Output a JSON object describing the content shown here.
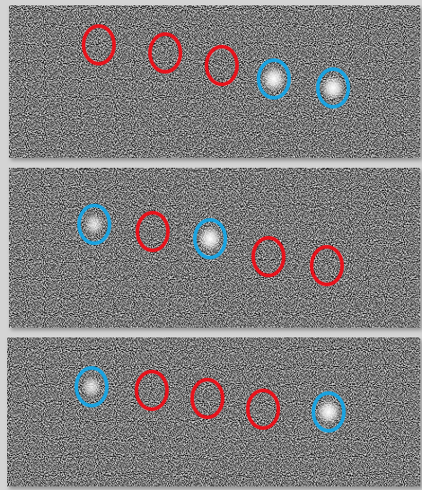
{
  "panels": [
    {
      "markers": [
        "#e8131c",
        "#e8131c",
        "#e8131c",
        "#1aa3e0",
        "#1aa3e0"
      ]
    },
    {
      "markers": [
        "#1aa3e0",
        "#e8131c",
        "#1aa3e0",
        "#e8131c",
        "#e8131c"
      ]
    },
    {
      "markers": [
        "#1aa3e0",
        "#e8131c",
        "#e8131c",
        "#e8131c",
        "#1aa3e0"
      ]
    }
  ]
}
